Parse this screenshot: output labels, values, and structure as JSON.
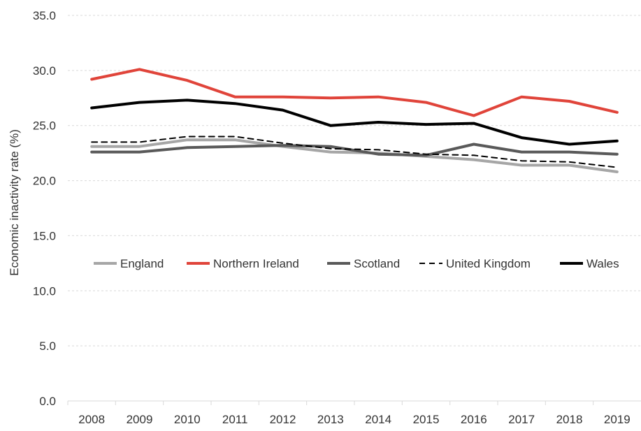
{
  "chart_data": {
    "type": "line",
    "title": "",
    "xlabel": "",
    "ylabel": "Economic inactivity rate (%)",
    "x": [
      "2008",
      "2009",
      "2010",
      "2011",
      "2012",
      "2013",
      "2014",
      "2015",
      "2016",
      "2017",
      "2018",
      "2019"
    ],
    "ylim": [
      0,
      35
    ],
    "yticks": [
      "0.0",
      "5.0",
      "10.0",
      "15.0",
      "20.0",
      "25.0",
      "30.0",
      "35.0"
    ],
    "grid": "horizontal dashed",
    "legend_position": "center",
    "series": [
      {
        "name": "England",
        "color": "#a6a6a6",
        "style": "solid",
        "values": [
          23.1,
          23.1,
          23.7,
          23.7,
          23.1,
          22.6,
          22.5,
          22.2,
          21.9,
          21.4,
          21.4,
          20.8
        ]
      },
      {
        "name": "Northern Ireland",
        "color": "#e0443a",
        "style": "solid",
        "values": [
          29.2,
          30.1,
          29.1,
          27.6,
          27.6,
          27.5,
          27.6,
          27.1,
          25.9,
          27.6,
          27.2,
          26.2
        ]
      },
      {
        "name": "Scotland",
        "color": "#595959",
        "style": "solid",
        "values": [
          22.6,
          22.6,
          23.0,
          23.1,
          23.2,
          23.1,
          22.4,
          22.3,
          23.3,
          22.6,
          22.6,
          22.4
        ]
      },
      {
        "name": "United Kingdom",
        "color": "#000000",
        "style": "dashed",
        "values": [
          23.5,
          23.5,
          24.0,
          24.0,
          23.4,
          22.9,
          22.8,
          22.4,
          22.3,
          21.8,
          21.7,
          21.2
        ]
      },
      {
        "name": "Wales",
        "color": "#000000",
        "style": "solid",
        "values": [
          26.6,
          27.1,
          27.3,
          27.0,
          26.4,
          25.0,
          25.3,
          25.1,
          25.2,
          23.9,
          23.3,
          23.6
        ]
      }
    ]
  }
}
